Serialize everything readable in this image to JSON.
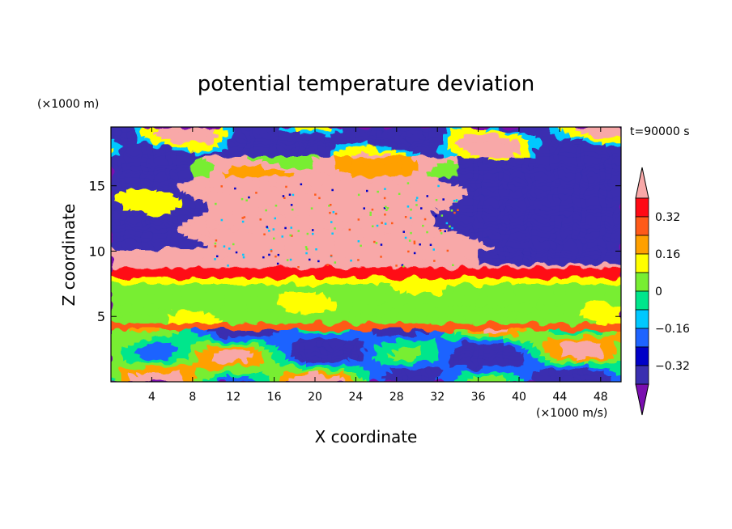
{
  "chart_data": {
    "type": "heatmap",
    "title": "potential temperature deviation",
    "xlabel": "X coordinate",
    "ylabel": "Z coordinate",
    "x_unit": "(×1000 m/s)",
    "y_unit": "(×1000 m)",
    "time_label": "t=90000 s",
    "xlim": [
      0,
      50
    ],
    "ylim": [
      0,
      19.5
    ],
    "x_ticks": [
      4,
      8,
      12,
      16,
      20,
      24,
      28,
      32,
      36,
      40,
      44,
      48
    ],
    "y_ticks": [
      5,
      10,
      15
    ],
    "colorbar": {
      "levels": [
        -0.4,
        -0.32,
        -0.24,
        -0.16,
        -0.08,
        0,
        0.08,
        0.16,
        0.24,
        0.32,
        0.4
      ],
      "colors": [
        "#7a0fb0",
        "#3a2fb0",
        "#0000c8",
        "#1e64ff",
        "#00c8ff",
        "#00e68c",
        "#78ee32",
        "#ffff00",
        "#ffa000",
        "#ff5a19",
        "#ff0a14",
        "#f8a8a8"
      ],
      "labels": [
        "0.32",
        "0.16",
        "0",
        "−0.16",
        "−0.32"
      ],
      "label_values": [
        0.32,
        0.16,
        0,
        -0.16,
        -0.32
      ]
    },
    "field_layers": [
      {
        "z_range": [
          17.5,
          19.5
        ],
        "value": -0.36,
        "note": "upper band, mostly purple with pink patches"
      },
      {
        "z_range": [
          11,
          17
        ],
        "value": 0.45,
        "x_range": [
          8,
          36
        ]
      },
      {
        "z_range": [
          10.5,
          17
        ],
        "value": -0.4,
        "x_range": [
          36,
          50
        ]
      },
      {
        "z_range": [
          8,
          8.7
        ],
        "value": 0.35
      },
      {
        "z_range": [
          4.3,
          7.8
        ],
        "value": 0.02
      },
      {
        "z_range": [
          4,
          4.3
        ],
        "value": 0.3
      },
      {
        "z_range": [
          0,
          4
        ],
        "value": -0.1,
        "note": "mixed eddies"
      }
    ]
  }
}
